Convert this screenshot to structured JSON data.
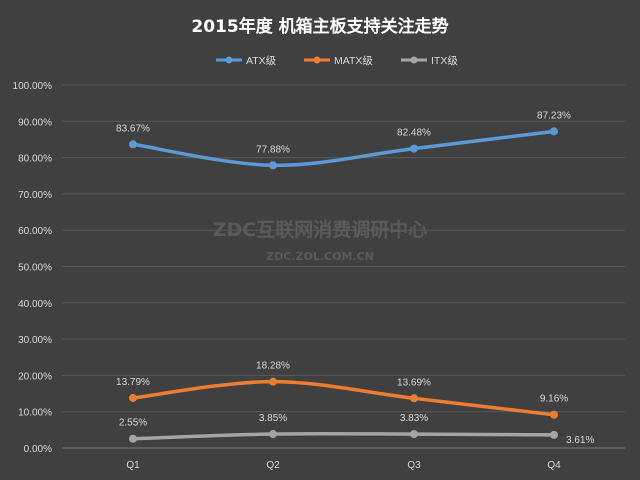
{
  "chart_data": {
    "type": "line",
    "title": "2015年度 机箱主板支持关注走势",
    "categories": [
      "Q1",
      "Q2",
      "Q3",
      "Q4"
    ],
    "series": [
      {
        "name": "ATX级",
        "color": "#5B9BD5",
        "values": [
          83.67,
          77.88,
          82.48,
          87.23
        ],
        "labels": [
          "83.67%",
          "77.88%",
          "82.48%",
          "87.23%"
        ]
      },
      {
        "name": "MATX级",
        "color": "#ED7D31",
        "values": [
          13.79,
          18.28,
          13.69,
          9.16
        ],
        "labels": [
          "13.79%",
          "18.28%",
          "13.69%",
          "9.16%"
        ]
      },
      {
        "name": "ITX级",
        "color": "#A5A5A5",
        "values": [
          2.55,
          3.85,
          3.83,
          3.61
        ],
        "labels": [
          "2.55%",
          "3.85%",
          "3.83%",
          "3.61%"
        ]
      }
    ],
    "ylim": [
      0,
      100
    ],
    "yticks": [
      "0.00%",
      "10.00%",
      "20.00%",
      "30.00%",
      "40.00%",
      "50.00%",
      "60.00%",
      "70.00%",
      "80.00%",
      "90.00%",
      "100.00%"
    ],
    "grid": true,
    "legend": "top-center",
    "background": "#404040"
  },
  "watermark": {
    "line1": "ZDC互联网消费调研中心",
    "line2": "ZDC.ZOL.COM.CN"
  }
}
